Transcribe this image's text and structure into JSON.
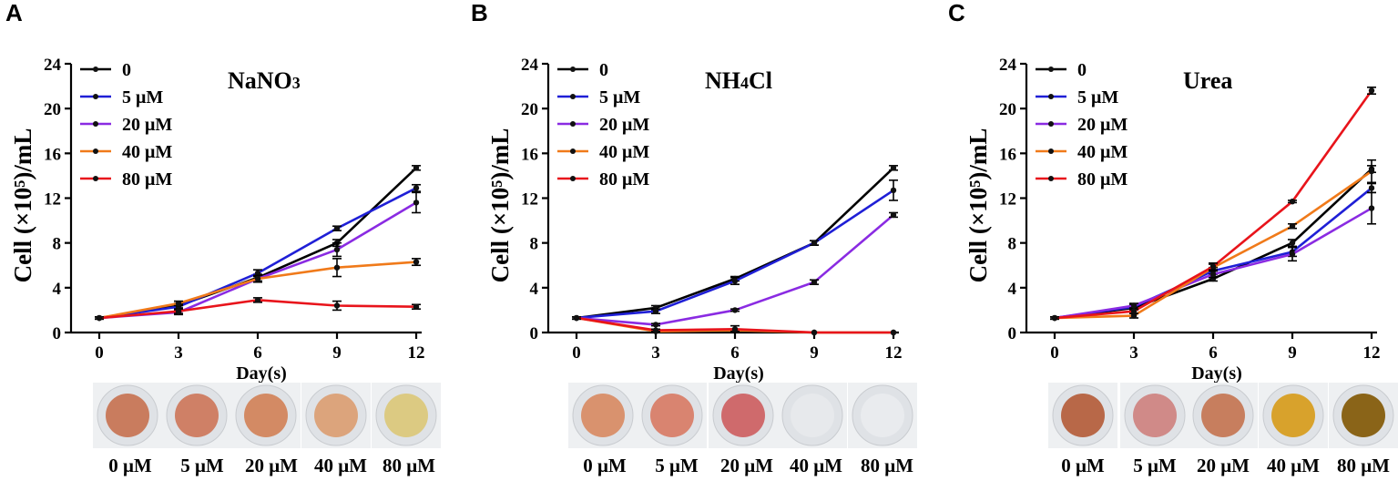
{
  "colors": {
    "s0": "#000000",
    "s5": "#1f1fd6",
    "s20": "#8a2be2",
    "s40": "#f07a1a",
    "s80": "#e8141b"
  },
  "chart_data": [
    {
      "type": "line",
      "panel": "A",
      "title": {
        "main": "NaNO",
        "sub": "3"
      },
      "title_text": "NaNO3",
      "xlabel": "Day(s)",
      "ylabel": "Cell (×10⁵)/mL",
      "x": [
        0,
        3,
        6,
        9,
        12
      ],
      "xlim": [
        0,
        12
      ],
      "ylim": [
        0,
        24
      ],
      "yticks": [
        0,
        4,
        8,
        12,
        16,
        20,
        24
      ],
      "series": [
        {
          "name": "0",
          "color": "#000000",
          "values": [
            1.3,
            2.4,
            4.9,
            8.0,
            14.7
          ],
          "errors": [
            0.1,
            0.2,
            0.3,
            0.3,
            0.2
          ]
        },
        {
          "name": "5 μM",
          "color": "#1f1fd6",
          "values": [
            1.3,
            2.3,
            5.3,
            9.3,
            12.9
          ],
          "errors": [
            0.1,
            0.2,
            0.3,
            0.2,
            0.3
          ]
        },
        {
          "name": "20 μM",
          "color": "#8a2be2",
          "values": [
            1.3,
            1.8,
            4.8,
            7.4,
            11.6
          ],
          "errors": [
            0.1,
            0.2,
            0.3,
            0.6,
            0.9
          ]
        },
        {
          "name": "40 μM",
          "color": "#f07a1a",
          "values": [
            1.3,
            2.6,
            4.8,
            5.8,
            6.3
          ],
          "errors": [
            0.1,
            0.2,
            0.3,
            0.8,
            0.3
          ]
        },
        {
          "name": "80 μM",
          "color": "#e8141b",
          "values": [
            1.3,
            1.9,
            2.9,
            2.4,
            2.3
          ],
          "errors": [
            0.1,
            0.2,
            0.2,
            0.4,
            0.2
          ]
        }
      ],
      "plates": [
        {
          "label": "0 μM",
          "fill": "#c97c5e"
        },
        {
          "label": "5 μM",
          "fill": "#cf8066"
        },
        {
          "label": "20 μM",
          "fill": "#d38a64"
        },
        {
          "label": "40 μM",
          "fill": "#dca47c"
        },
        {
          "label": "80 μM",
          "fill": "#dcca82"
        }
      ]
    },
    {
      "type": "line",
      "panel": "B",
      "title": {
        "main": "NH",
        "sub": "4",
        "tail": "Cl"
      },
      "title_text": "NH4Cl",
      "xlabel": "Day(s)",
      "ylabel": "Cell (×10⁵)/mL",
      "x": [
        0,
        3,
        6,
        9,
        12
      ],
      "xlim": [
        0,
        12
      ],
      "ylim": [
        0,
        24
      ],
      "yticks": [
        0,
        4,
        8,
        12,
        16,
        20,
        24
      ],
      "series": [
        {
          "name": "0",
          "color": "#000000",
          "values": [
            1.3,
            2.2,
            4.8,
            8.0,
            14.7
          ],
          "errors": [
            0.1,
            0.2,
            0.2,
            0.2,
            0.2
          ]
        },
        {
          "name": "5 μM",
          "color": "#1f1fd6",
          "values": [
            1.3,
            1.9,
            4.6,
            8.0,
            12.7
          ],
          "errors": [
            0.1,
            0.2,
            0.3,
            0.2,
            0.9
          ]
        },
        {
          "name": "20 μM",
          "color": "#8a2be2",
          "values": [
            1.3,
            0.7,
            2.0,
            4.5,
            10.5
          ],
          "errors": [
            0.1,
            0.1,
            0.1,
            0.2,
            0.2
          ]
        },
        {
          "name": "40 μM",
          "color": "#f07a1a",
          "values": [
            1.3,
            0.1,
            0.2,
            0.0,
            0.0
          ],
          "errors": [
            0.1,
            0.05,
            0.1,
            0.0,
            0.0
          ]
        },
        {
          "name": "80 μM",
          "color": "#e8141b",
          "values": [
            1.3,
            0.2,
            0.3,
            0.0,
            0.0
          ],
          "errors": [
            0.1,
            0.1,
            0.3,
            0.0,
            0.0
          ]
        }
      ],
      "plates": [
        {
          "label": "0 μM",
          "fill": "#d9926e"
        },
        {
          "label": "5 μM",
          "fill": "#d98470"
        },
        {
          "label": "20 μM",
          "fill": "#cf6a6c"
        },
        {
          "label": "40 μM",
          "fill": "#e7e9ec"
        },
        {
          "label": "80 μM",
          "fill": "#e9ebee"
        }
      ]
    },
    {
      "type": "line",
      "panel": "C",
      "title": {
        "main": "Urea"
      },
      "title_text": "Urea",
      "xlabel": "Day(s)",
      "ylabel": "Cell (×10⁵)/mL",
      "x": [
        0,
        3,
        6,
        9,
        12
      ],
      "xlim": [
        0,
        12
      ],
      "ylim": [
        0,
        24
      ],
      "yticks": [
        0,
        4,
        8,
        12,
        16,
        20,
        24
      ],
      "series": [
        {
          "name": "0",
          "color": "#000000",
          "values": [
            1.3,
            2.2,
            4.8,
            8.0,
            14.6
          ],
          "errors": [
            0.1,
            0.2,
            0.2,
            0.3,
            0.3
          ]
        },
        {
          "name": "5 μM",
          "color": "#1f1fd6",
          "values": [
            1.3,
            2.3,
            5.5,
            7.2,
            12.9
          ],
          "errors": [
            0.1,
            0.2,
            0.3,
            0.4,
            0.4
          ]
        },
        {
          "name": "20 μM",
          "color": "#8a2be2",
          "values": [
            1.3,
            2.4,
            5.2,
            7.0,
            11.1
          ],
          "errors": [
            0.1,
            0.2,
            0.3,
            0.6,
            1.4
          ]
        },
        {
          "name": "40 μM",
          "color": "#f07a1a",
          "values": [
            1.3,
            1.5,
            5.8,
            9.5,
            14.4
          ],
          "errors": [
            0.1,
            0.2,
            0.3,
            0.2,
            1.0
          ]
        },
        {
          "name": "80 μM",
          "color": "#e8141b",
          "values": [
            1.3,
            1.9,
            5.9,
            11.7,
            21.6
          ],
          "errors": [
            0.1,
            0.2,
            0.3,
            0.1,
            0.3
          ]
        }
      ],
      "plates": [
        {
          "label": "0 μM",
          "fill": "#b86848"
        },
        {
          "label": "5 μM",
          "fill": "#d08a88"
        },
        {
          "label": "20 μM",
          "fill": "#c77e5e"
        },
        {
          "label": "40 μM",
          "fill": "#d8a22c"
        },
        {
          "label": "80 μM",
          "fill": "#8a6418"
        }
      ]
    }
  ]
}
